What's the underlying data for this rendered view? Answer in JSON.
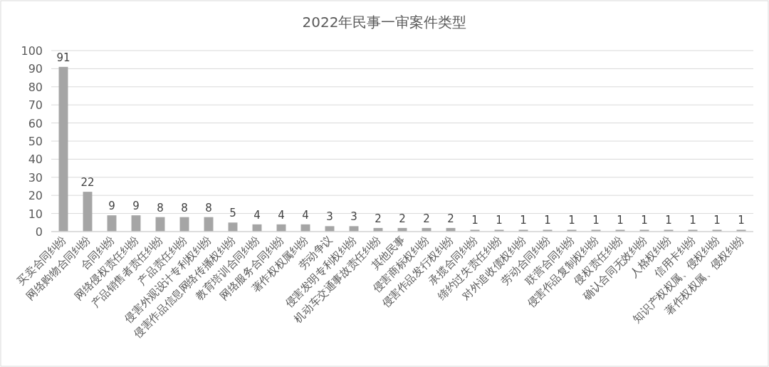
{
  "chart_data": {
    "type": "bar",
    "title": "2022年民事一审案件类型",
    "categories": [
      "买卖合同纠纷",
      "网络购物合同纠纷",
      "合同纠纷",
      "网络侵权责任纠纷",
      "产品销售者责任纠纷",
      "产品责任纠纷",
      "侵害外观设计专利权纠纷",
      "侵害作品信息网络传播权纠纷",
      "教育培训合同纠纷",
      "网络服务合同纠纷",
      "著作权权属纠纷",
      "劳动争议",
      "侵害发明专利权纠纷",
      "机动车交通事故责任纠纷",
      "其他民事",
      "侵害商标权纠纷",
      "侵害作品发行权纠纷",
      "承揽合同纠纷",
      "缔约过失责任纠纷",
      "对外追收债权纠纷",
      "劳动合同纠纷",
      "联营合同纠纷",
      "侵害作品复制权纠纷",
      "侵权责任纠纷",
      "确认合同无效纠纷",
      "人格权纠纷",
      "信用卡纠纷",
      "知识产权权属、侵权纠纷",
      "著作权权属、侵权纠纷"
    ],
    "values": [
      91,
      22,
      9,
      9,
      8,
      8,
      8,
      5,
      4,
      4,
      4,
      3,
      3,
      2,
      2,
      2,
      2,
      1,
      1,
      1,
      1,
      1,
      1,
      1,
      1,
      1,
      1,
      1,
      1
    ],
    "color": "#a5a5a5",
    "ylim": [
      0,
      100
    ],
    "yticks": [
      0,
      10,
      20,
      30,
      40,
      50,
      60,
      70,
      80,
      90,
      100
    ],
    "grid": "y",
    "data_labels": true
  }
}
